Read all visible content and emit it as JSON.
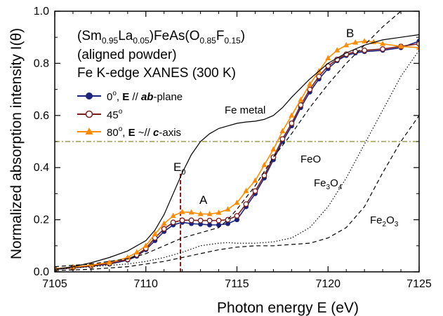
{
  "chart_data": {
    "type": "line",
    "title": "",
    "xlabel": "Photon energy  E (eV)",
    "ylabel": "Normalized absorption intensity I(θ)",
    "xlim": [
      7105,
      7125
    ],
    "ylim": [
      0.0,
      1.0
    ],
    "x_ticks": [
      "7105",
      "7110",
      "7115",
      "7120",
      "7125"
    ],
    "y_ticks": [
      "0.0",
      "0.2",
      "0.4",
      "0.6",
      "0.8",
      "1.0"
    ],
    "legend": {
      "placement": "top-left",
      "header": {
        "line1_main": "(Sm",
        "line1_sub1": "0.95",
        "line1_mid": "La",
        "line1_sub2": "0.05",
        "line1_mid2": ")FeAs(O",
        "line1_sub3": "0.85",
        "line1_mid3": "F",
        "line1_sub4": "0.15",
        "line1_end": ")",
        "line2": "(aligned powder)",
        "line3": "Fe K-edge XANES (300 K)"
      },
      "entries": [
        {
          "pre": "0",
          "sup": "o",
          "mid": ", ",
          "bold": "E",
          "rel": " // ",
          "boldital": "ab",
          "post": "-plane"
        },
        {
          "pre": "45",
          "sup": "o",
          "mid": "",
          "bold": "",
          "rel": "",
          "boldital": "",
          "post": ""
        },
        {
          "pre": "80",
          "sup": "o",
          "mid": ", ",
          "bold": "E",
          "rel": " ~// ",
          "boldital": "c",
          "post": "-axis"
        }
      ]
    },
    "annotations": {
      "fe_metal": "Fe metal",
      "feo": "FeO",
      "fe3o4_main": "Fe",
      "fe3o4_sub": "3",
      "fe3o4_end": "O",
      "fe3o4_sub2": "4",
      "fe2o3_main": "Fe",
      "fe2o3_sub": "2",
      "fe2o3_end": "O",
      "fe2o3_sub2": "3",
      "label_a": "A",
      "label_b": "B",
      "e0_main": "E",
      "e0_sub": "0"
    },
    "e0_x": 7111.9,
    "half_level_y": 0.5,
    "series": [
      {
        "id": "s0",
        "color": "#1a237e",
        "marker": "filled-circle",
        "x": [
          7105,
          7106,
          7107,
          7108,
          7109,
          7109.5,
          7110,
          7110.5,
          7111,
          7111.5,
          7112,
          7112.5,
          7113,
          7113.5,
          7114,
          7114.5,
          7115,
          7115.5,
          7116,
          7116.5,
          7117,
          7117.5,
          7118,
          7118.5,
          7119,
          7119.5,
          7120,
          7120.5,
          7121,
          7121.5,
          7122,
          7123,
          7124,
          7125
        ],
        "y": [
          0.01,
          0.015,
          0.022,
          0.03,
          0.045,
          0.06,
          0.085,
          0.12,
          0.155,
          0.18,
          0.19,
          0.185,
          0.183,
          0.18,
          0.18,
          0.185,
          0.2,
          0.25,
          0.3,
          0.36,
          0.43,
          0.5,
          0.56,
          0.63,
          0.69,
          0.74,
          0.78,
          0.81,
          0.83,
          0.84,
          0.845,
          0.85,
          0.86,
          0.885
        ]
      },
      {
        "id": "s45",
        "color": "#7b1e1e",
        "marker": "open-circle",
        "x": [
          7105,
          7106,
          7107,
          7108,
          7109,
          7109.5,
          7110,
          7110.5,
          7111,
          7111.5,
          7112,
          7112.5,
          7113,
          7113.5,
          7114,
          7114.5,
          7115,
          7115.5,
          7116,
          7116.5,
          7117,
          7117.5,
          7118,
          7118.5,
          7119,
          7119.5,
          7120,
          7120.5,
          7121,
          7121.5,
          7122,
          7123,
          7124,
          7125
        ],
        "y": [
          0.01,
          0.016,
          0.023,
          0.032,
          0.048,
          0.065,
          0.09,
          0.13,
          0.165,
          0.19,
          0.198,
          0.198,
          0.197,
          0.197,
          0.197,
          0.2,
          0.215,
          0.26,
          0.31,
          0.37,
          0.44,
          0.51,
          0.57,
          0.64,
          0.7,
          0.75,
          0.79,
          0.815,
          0.835,
          0.845,
          0.85,
          0.855,
          0.865,
          0.875
        ]
      },
      {
        "id": "s80",
        "color": "#ff8c00",
        "marker": "filled-triangle",
        "x": [
          7105,
          7106,
          7107,
          7108,
          7109,
          7109.5,
          7110,
          7110.5,
          7111,
          7111.5,
          7112,
          7112.5,
          7113,
          7113.5,
          7114,
          7114.5,
          7115,
          7115.5,
          7116,
          7116.5,
          7117,
          7117.5,
          7118,
          7118.5,
          7119,
          7119.5,
          7120,
          7120.5,
          7121,
          7121.5,
          7122,
          7122.5,
          7123,
          7124,
          7125
        ],
        "y": [
          0.012,
          0.018,
          0.026,
          0.036,
          0.055,
          0.075,
          0.1,
          0.145,
          0.185,
          0.215,
          0.23,
          0.228,
          0.222,
          0.222,
          0.227,
          0.24,
          0.265,
          0.31,
          0.35,
          0.41,
          0.47,
          0.54,
          0.6,
          0.66,
          0.72,
          0.77,
          0.82,
          0.85,
          0.87,
          0.88,
          0.885,
          0.882,
          0.875,
          0.865,
          0.86
        ]
      },
      {
        "id": "fe_metal",
        "color": "#000000",
        "marker": "none",
        "dash": "solid",
        "x": [
          7105,
          7106,
          7107,
          7108,
          7109,
          7110,
          7110.5,
          7111,
          7111.5,
          7112,
          7112.5,
          7113,
          7113.5,
          7114,
          7114.5,
          7115,
          7115.5,
          7116,
          7116.5,
          7117,
          7117.5,
          7118,
          7119,
          7120,
          7121,
          7122,
          7123,
          7124,
          7125
        ],
        "y": [
          0.01,
          0.02,
          0.035,
          0.055,
          0.08,
          0.12,
          0.16,
          0.22,
          0.3,
          0.38,
          0.45,
          0.5,
          0.53,
          0.55,
          0.56,
          0.57,
          0.575,
          0.578,
          0.585,
          0.6,
          0.63,
          0.67,
          0.74,
          0.8,
          0.84,
          0.87,
          0.89,
          0.9,
          0.91
        ]
      },
      {
        "id": "feo",
        "color": "#000000",
        "marker": "none",
        "dash": "dashed",
        "x": [
          7105,
          7107,
          7109,
          7110,
          7111,
          7112,
          7113,
          7113.5,
          7114,
          7114.5,
          7115,
          7116,
          7117,
          7118,
          7119,
          7120,
          7121,
          7122,
          7123,
          7124,
          7125
        ],
        "y": [
          0.02,
          0.03,
          0.05,
          0.07,
          0.1,
          0.13,
          0.15,
          0.16,
          0.17,
          0.2,
          0.24,
          0.33,
          0.44,
          0.53,
          0.63,
          0.72,
          0.8,
          0.87,
          0.94,
          1.0,
          1.06
        ]
      },
      {
        "id": "fe3o4",
        "color": "#000000",
        "marker": "none",
        "dash": "dotted",
        "x": [
          7105,
          7107,
          7109,
          7110,
          7111,
          7112,
          7113,
          7114,
          7114.5,
          7115,
          7116,
          7117,
          7118,
          7119,
          7120,
          7121,
          7122,
          7123,
          7124,
          7125
        ],
        "y": [
          0.01,
          0.02,
          0.03,
          0.04,
          0.055,
          0.075,
          0.1,
          0.11,
          0.112,
          0.11,
          0.11,
          0.115,
          0.13,
          0.17,
          0.25,
          0.36,
          0.49,
          0.62,
          0.75,
          0.85
        ]
      },
      {
        "id": "fe2o3",
        "color": "#000000",
        "marker": "none",
        "dash": "dashed",
        "x": [
          7105,
          7107,
          7109,
          7110,
          7111,
          7112,
          7113,
          7114,
          7115,
          7116,
          7117,
          7118,
          7119,
          7120,
          7121,
          7122,
          7123,
          7124,
          7125
        ],
        "y": [
          0.005,
          0.01,
          0.02,
          0.03,
          0.04,
          0.055,
          0.07,
          0.085,
          0.095,
          0.1,
          0.1,
          0.105,
          0.11,
          0.13,
          0.17,
          0.25,
          0.38,
          0.5,
          0.6
        ]
      }
    ]
  }
}
